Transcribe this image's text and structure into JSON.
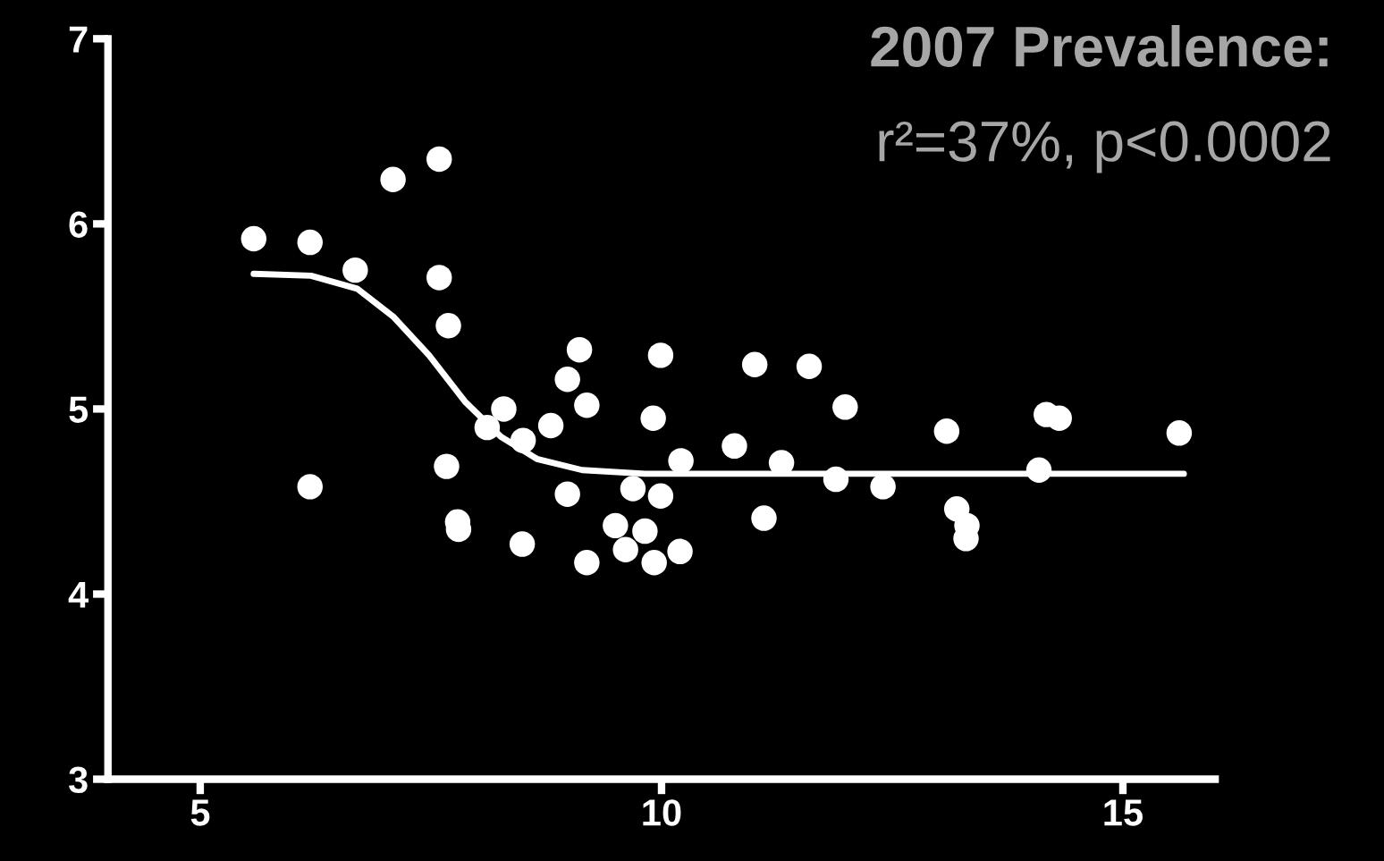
{
  "chart_data": {
    "type": "scatter",
    "title": "2007 Prevalence:",
    "subtitle": "r²=37%, p<0.0002",
    "xlim": [
      4,
      16
    ],
    "xticks": [
      5,
      10,
      15
    ],
    "ylim": [
      3,
      7
    ],
    "yticks": [
      3,
      4,
      5,
      6,
      7
    ],
    "grid": false,
    "legend": false,
    "marker": "circle",
    "series": [
      {
        "color": "#ffffff",
        "x": [
          5.58,
          6.19,
          6.68,
          6.19,
          7.09,
          7.59,
          7.59,
          7.69,
          7.67,
          7.79,
          7.8,
          8.11,
          8.29,
          8.5,
          8.49,
          8.8,
          8.98,
          9.11,
          9.19,
          8.98,
          9.19,
          9.5,
          9.61,
          9.69,
          9.82,
          9.91,
          9.99,
          9.99,
          9.92,
          10.21,
          10.2,
          10.79,
          11.01,
          11.11,
          11.3,
          11.6,
          11.89,
          11.99,
          12.4,
          13.09,
          13.2,
          13.3,
          13.31,
          14.09,
          14.17,
          14.31,
          15.61
        ],
        "values": [
          5.92,
          5.9,
          5.75,
          4.58,
          6.24,
          6.35,
          5.71,
          5.45,
          4.69,
          4.39,
          4.35,
          4.9,
          5.0,
          4.83,
          4.27,
          4.91,
          5.16,
          5.32,
          5.02,
          4.54,
          4.17,
          4.37,
          4.24,
          4.57,
          4.34,
          4.95,
          5.29,
          4.53,
          4.17,
          4.72,
          4.23,
          4.8,
          5.24,
          4.41,
          4.71,
          5.23,
          4.62,
          5.01,
          4.58,
          4.88,
          4.46,
          4.3,
          4.37,
          4.67,
          4.97,
          4.95,
          4.87
        ]
      },
      {
        "type": "line",
        "color": "#ffffff",
        "line_style": "solid",
        "marker": "none",
        "x": [
          5.58,
          6.2,
          6.7,
          7.09,
          7.48,
          7.87,
          8.26,
          8.65,
          9.14,
          9.82,
          15.66
        ],
        "values": [
          5.73,
          5.72,
          5.65,
          5.5,
          5.29,
          5.04,
          4.85,
          4.73,
          4.67,
          4.65,
          4.65
        ]
      }
    ]
  }
}
